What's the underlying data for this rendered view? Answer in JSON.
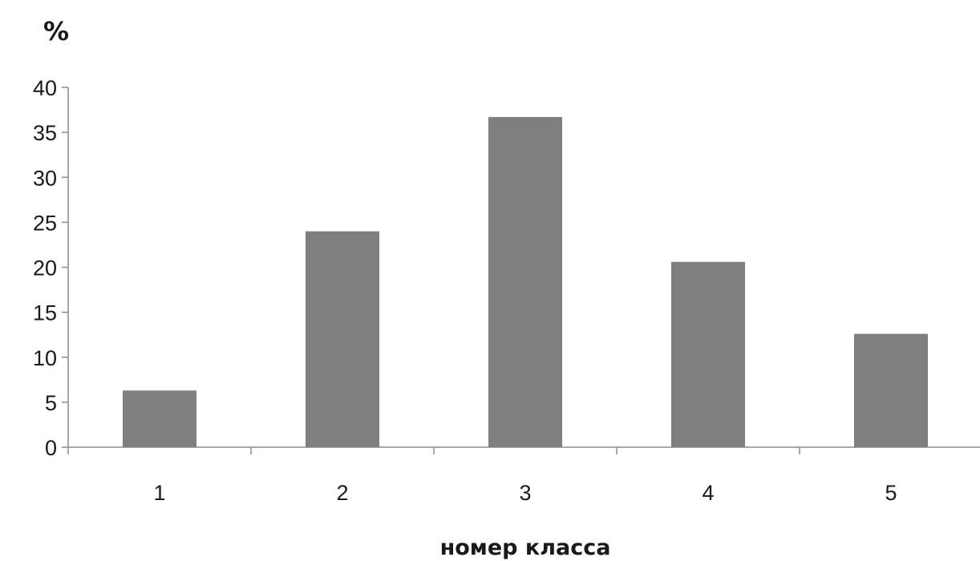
{
  "chart_data": {
    "type": "bar",
    "categories": [
      "1",
      "2",
      "3",
      "4",
      "5"
    ],
    "values": [
      6.3,
      24.0,
      36.7,
      20.6,
      12.6
    ],
    "xlabel": "номер класса",
    "ylabel": "%",
    "ylim": [
      0,
      40
    ],
    "yticks": [
      "0",
      "5",
      "10",
      "15",
      "20",
      "25",
      "30",
      "35",
      "40"
    ],
    "bar_color": "#7f7f7f",
    "grid": false,
    "legend": "none"
  }
}
